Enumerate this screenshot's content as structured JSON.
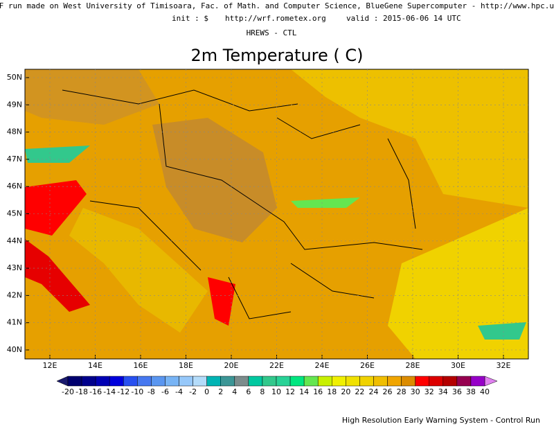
{
  "header": {
    "line1": "RF run made on West University of Timisoara, Fac. of Math. and Computer Science, BlueGene Supercomputer - http://www.hpc.uvt.ro",
    "init": "init : $",
    "site": "http://wrf.rometex.org",
    "valid": "valid : 2015-06-06  14 UTC",
    "model": "HREWS - CTL"
  },
  "title": "2m Temperature (  C)",
  "map": {
    "lat_labels": [
      "50N",
      "49N",
      "48N",
      "47N",
      "46N",
      "45N",
      "44N",
      "43N",
      "42N",
      "41N",
      "40N"
    ],
    "lon_labels": [
      "12E",
      "14E",
      "16E",
      "18E",
      "20E",
      "22E",
      "24E",
      "26E",
      "28E",
      "30E",
      "32E"
    ]
  },
  "colorbar": {
    "labels": [
      -20,
      -18,
      -16,
      -14,
      -12,
      -10,
      -8,
      -6,
      -4,
      -2,
      0,
      2,
      4,
      6,
      8,
      10,
      12,
      14,
      16,
      18,
      20,
      22,
      24,
      26,
      28,
      30,
      32,
      34,
      36,
      38,
      40
    ],
    "under_color": "#1a1a6e",
    "over_color": "#e080f0",
    "colors": [
      "#00006e",
      "#00008c",
      "#0000b4",
      "#0000dc",
      "#2850f0",
      "#4678f0",
      "#5a96f0",
      "#78b4f5",
      "#96c8fa",
      "#b4dcfa",
      "#00b4b4",
      "#3c9696",
      "#7c8c8c",
      "#00c8a0",
      "#32c88c",
      "#28d296",
      "#00e680",
      "#64e650",
      "#c8f000",
      "#f0f000",
      "#f0e100",
      "#f0d200",
      "#f0be00",
      "#f0a500",
      "#dc8c00",
      "#ff0000",
      "#dc0000",
      "#b40000",
      "#960050",
      "#9600c8"
    ]
  },
  "footer": "High Resolution Early Warning System - Control Run"
}
